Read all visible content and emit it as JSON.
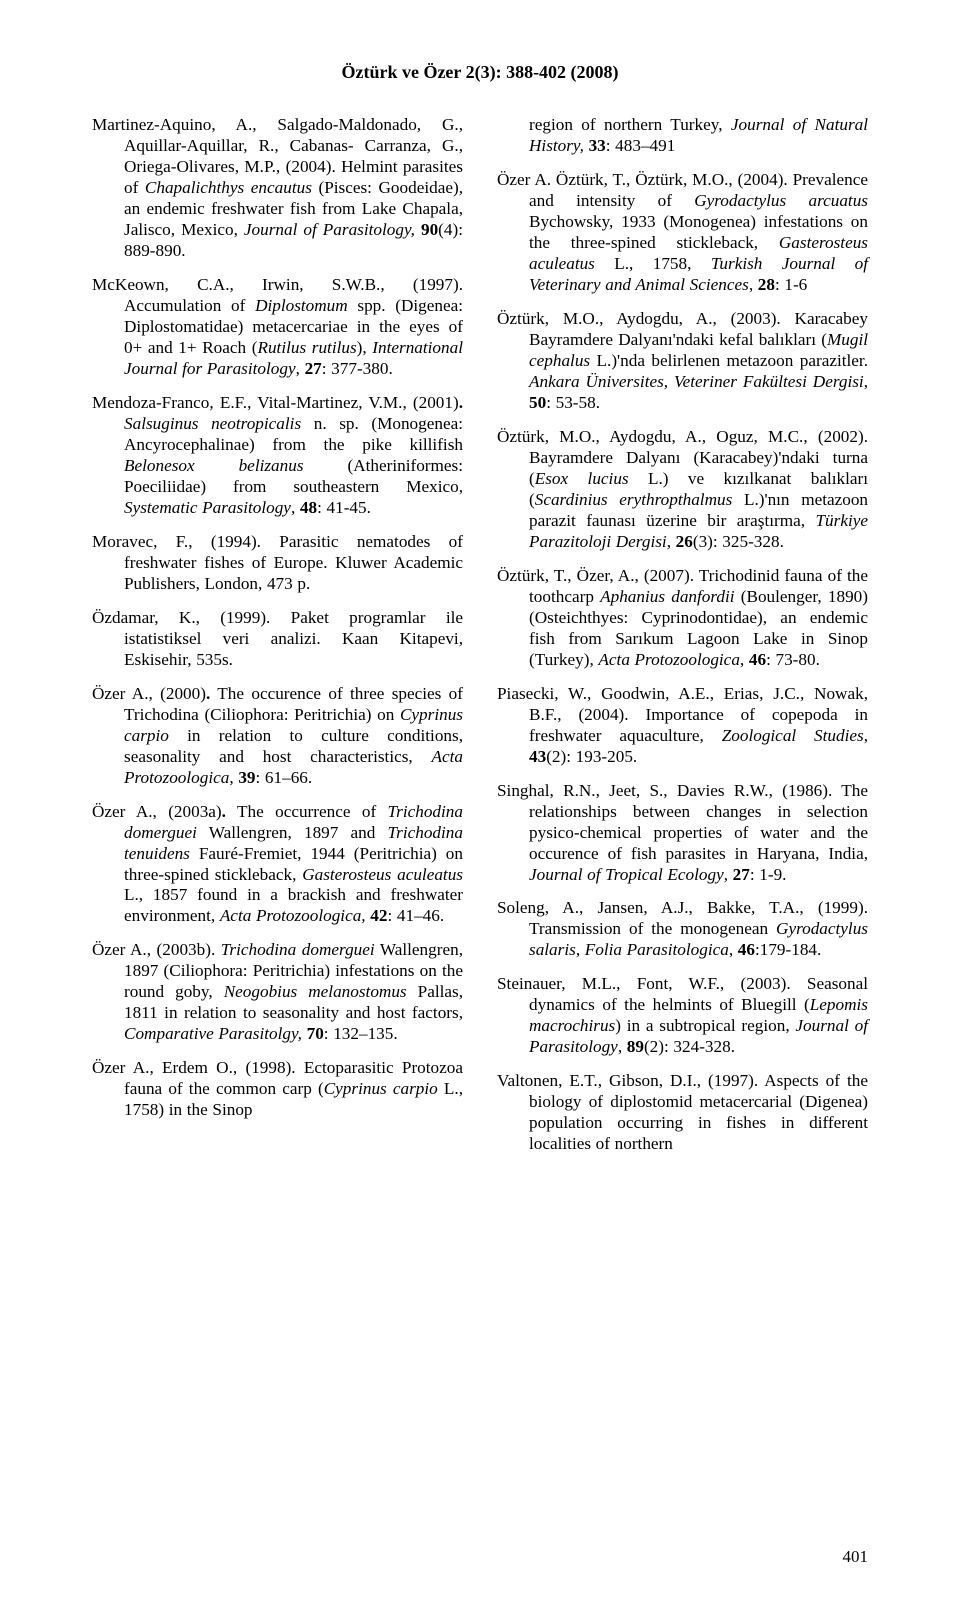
{
  "header": "Öztürk ve Özer 2(3): 388-402 (2008)",
  "page_number": "401",
  "left": [
    {
      "html": "Martinez-Aquino, A., Salgado-Maldonado, G., Aquillar-Aquillar, R., Cabanas- Carranza, G., Oriega-Olivares, M.P., (2004). Helmint parasites of <span class='i'>Chapalichthys encautus</span> (Pisces: Goodeidae), an endemic freshwater fish from Lake Chapala, Jalisco, Mexico, <span class='i'>Journal of Parasitology,</span> <span class='b'>90</span>(4): 889-890."
    },
    {
      "html": "McKeown, C.A., Irwin, S.W.B., (1997). Accumulation of <span class='i'>Diplostomum</span> spp. (Digenea: Diplostomatidae) metacercariae in the eyes of 0+ and 1+ Roach (<span class='i'>Rutilus rutilus</span>), <span class='i'>International Journal for Parasitology</span>, <span class='b'>27</span>: 377-380."
    },
    {
      "html": "Mendoza-Franco, E.F., Vital-Martinez, V.M., (2001)<span class='b'>.</span> <span class='i'>Salsuginus neotropicalis</span> n. sp. (Monogenea: Ancyrocephalinae) from the pike killifish <span class='i'>Belonesox belizanus</span> (Atheriniformes: Poeciliidae) from southeastern Mexico, <span class='i'>Systematic Parasitology</span>, <span class='b'>48</span>: 41-45."
    },
    {
      "html": "Moravec, F., (1994). Parasitic nematodes of freshwater fishes of Europe. Kluwer Academic Publishers, London, 473 p."
    },
    {
      "html": "Özdamar, K., (1999). Paket programlar ile istatistiksel veri analizi. Kaan Kitapevi, Eskisehir, 535s."
    },
    {
      "html": "Özer A., (2000)<span class='b'>.</span> The occurence of three species of Trichodina (Ciliophora: Peritrichia) on <span class='i'>Cyprinus carpio</span> in relation to culture conditions, seasonality and host characteristics, <span class='i'>Acta Protozoologica,</span> <span class='b'>39</span>: 61–66."
    },
    {
      "html": "Özer A., (2003a)<span class='b'>.</span> The occurrence of <span class='i'>Trichodina domerguei</span> Wallengren, 1897 and <span class='i'>Trichodina tenuidens</span> Fauré-Fremiet, 1944 (Peritrichia) on three-spined stickleback, <span class='i'>Gasterosteus aculeatus</span> L., 1857 found in a brackish and freshwater environment, <span class='i'>Acta Protozoologica,</span> <span class='b'>42</span>: 41–46."
    },
    {
      "html": "Özer A., (2003b). <span class='i'>Trichodina domerguei</span> Wallengren, 1897 (Ciliophora: Peritrichia) infestations on the round goby, <span class='i'>Neogobius melanostomus</span> Pallas, 1811 in relation to seasonality and host factors, <span class='i'>Comparative Parasitolgy,</span> <span class='b'>70</span>: 132–135."
    },
    {
      "html": "Özer A., Erdem O., (1998). Ectoparasitic Protozoa fauna of the common carp (<span class='i'>Cyprinus carpio</span> L., 1758) in the Sinop"
    }
  ],
  "right": [
    {
      "html": "region of northern Turkey, <span class='i'>Journal of Natural History,</span> <span class='b'>33</span>: 483–491",
      "cont": true
    },
    {
      "html": "Özer A. Öztürk, T., Öztürk, M.O., (2004). Prevalence and intensity of <span class='i'>Gyrodactylus arcuatus</span> Bychowsky, 1933 (Monogenea) infestations on the three-spined stickleback, <span class='i'>Gasterosteus aculeatus</span> L., 1758, <span class='i'>Turkish Journal of Veterinary and Animal Sciences</span>, <span class='b'>28</span>: 1-6"
    },
    {
      "html": "Öztürk, M.O., Aydogdu, A., (2003). Karacabey Bayramdere Dalyanı'ndaki kefal balıkları (<span class='i'>Mugil cephalus</span> L.)'nda belirlenen metazoon parazitler. <span class='i'>Ankara Üniversites, Veteriner Fakültesi Dergisi</span>, <span class='b'>50</span>: 53-58."
    },
    {
      "html": "Öztürk, M.O., Aydogdu, A., Oguz, M.C., (2002). Bayramdere Dalyanı (Karacabey)'ndaki turna (<span class='i'>Esox lucius</span> L.) ve kızılkanat balıkları (<span class='i'>Scardinius erythropthalmus</span> L.)'nın metazoon parazit faunası üzerine bir araştırma, <span class='i'>Türkiye Parazitoloji Dergisi</span>, <span class='b'>26</span>(3): 325-328."
    },
    {
      "html": "Öztürk, T., Özer, A., (2007). Trichodinid fauna of the toothcarp <span class='i'>Aphanius danfordii</span> (Boulenger, 1890)(Osteichthyes: Cyprinodontidae), an endemic fish from Sarıkum Lagoon Lake in Sinop (Turkey), <span class='i'>Acta Protozoologica</span>, <span class='b'>46</span>: 73-80."
    },
    {
      "html": "Piasecki, W., Goodwin, A.E., Erias, J.C., Nowak, B.F., (2004). Importance of copepoda in freshwater aquaculture, <span class='i'>Zoological Studies</span>, <span class='b'>43</span>(2): 193-205."
    },
    {
      "html": "Singhal, R.N., Jeet, S., Davies R.W., (1986). The relationships between changes in selection pysico-chemical properties of water and the occurence of fish parasites in Haryana, India, <span class='i'>Journal of Tropical Ecology</span>, <span class='b'>27</span>: 1-9."
    },
    {
      "html": "Soleng, A., Jansen, A.J., Bakke, T.A., (1999). Transmission of the monogenean <span class='i'>Gyrodactylus salaris</span>, <span class='i'>Folia Parasitologica</span>, <span class='b'>46</span>:179-184."
    },
    {
      "html": "Steinauer, M.L., Font, W.F., (2003). Seasonal dynamics of the helmints of Bluegill (<span class='i'>Lepomis macrochirus</span>) in a subtropical region, <span class='i'>Journal of Parasitology</span>, <span class='b'>89</span>(2): 324-328."
    },
    {
      "html": "Valtonen, E.T., Gibson, D.I., (1997). Aspects of the biology of diplostomid metacercarial (Digenea) population occurring in fishes in different localities of northern"
    }
  ]
}
